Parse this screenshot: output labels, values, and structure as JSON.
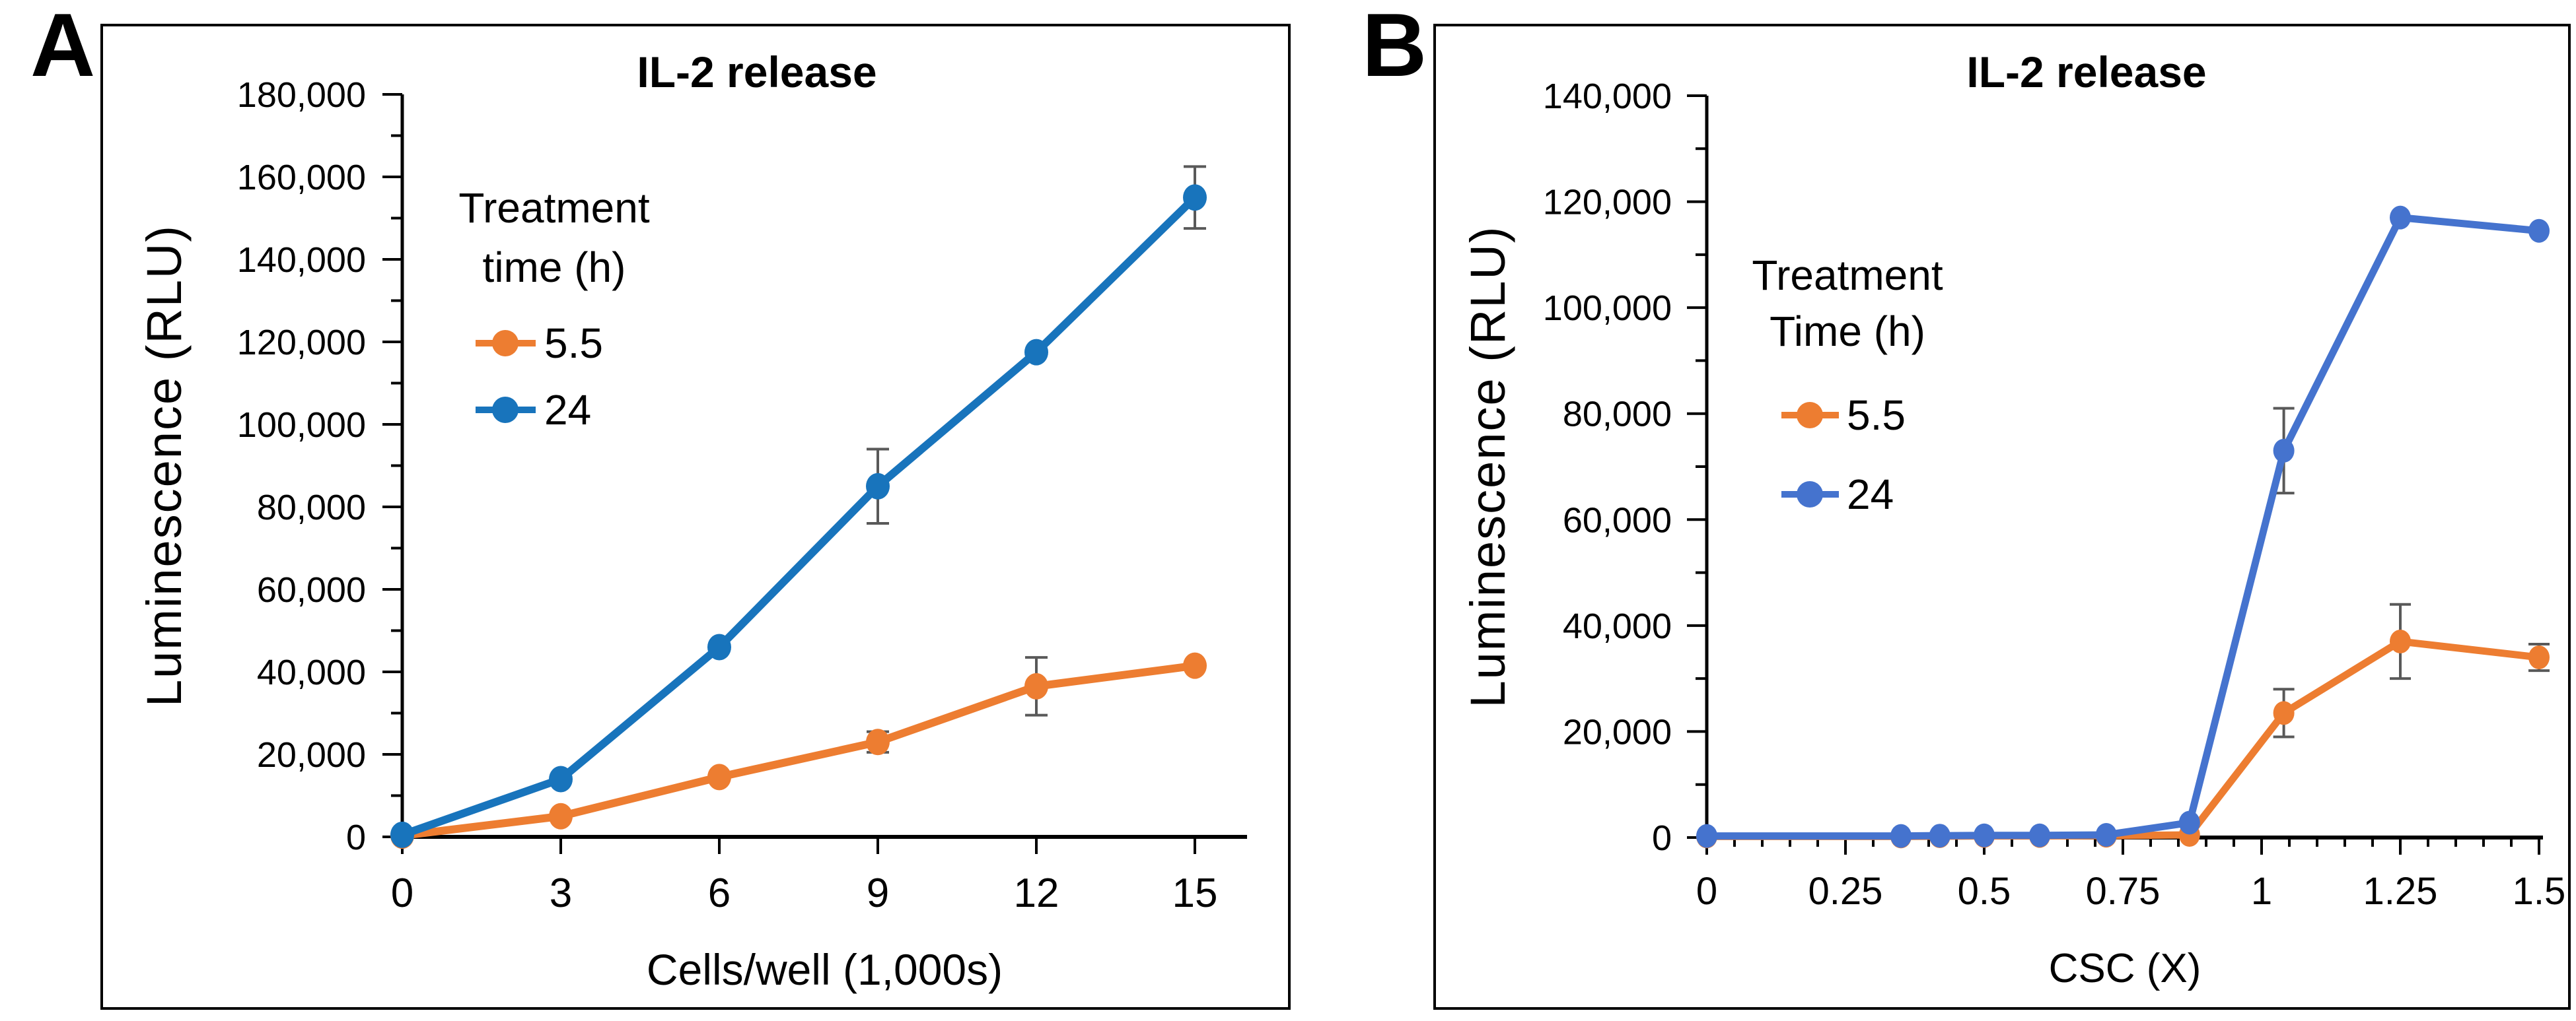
{
  "figure": {
    "background_color": "#ffffff",
    "text_color": "#000000",
    "error_bar_color": "#595959"
  },
  "panels": [
    {
      "letter": "A"
    },
    {
      "letter": "B"
    }
  ],
  "chart_data": [
    {
      "type": "line",
      "panel": "A",
      "title": "IL-2 release",
      "xlabel": "Cells/well (1,000s)",
      "ylabel": "Luminescence (RLU)",
      "xlim": [
        0,
        16
      ],
      "ylim": [
        0,
        180000
      ],
      "y_major_step": 20000,
      "y_minor_step": 10000,
      "x_ticks": [
        0,
        3,
        6,
        9,
        12,
        15
      ],
      "x_tick_labels": [
        "0",
        "3",
        "6",
        "9",
        "12",
        "15"
      ],
      "x_minor_step": null,
      "grid": false,
      "legend_position": "upper-left-inside",
      "legend_title_lines": [
        "Treatment",
        "time (h)"
      ],
      "series": [
        {
          "name": "5.5",
          "color": "#ED7D31",
          "x": [
            0,
            3,
            6,
            9,
            12,
            15
          ],
          "y": [
            300,
            5000,
            14500,
            23000,
            36500,
            41500
          ],
          "yerr": [
            0,
            0,
            0,
            2500,
            7000,
            0
          ]
        },
        {
          "name": "24",
          "color": "#1874BC",
          "x": [
            0,
            3,
            6,
            9,
            12,
            15
          ],
          "y": [
            500,
            14000,
            46000,
            85000,
            117500,
            155000
          ],
          "yerr": [
            0,
            0,
            0,
            9000,
            0,
            7500
          ]
        }
      ]
    },
    {
      "type": "line",
      "panel": "B",
      "title": "IL-2 release",
      "xlabel": "CSC (X)",
      "ylabel": "Luminescence (RLU)",
      "xlim": [
        0,
        1.51
      ],
      "ylim": [
        0,
        140000
      ],
      "y_major_step": 20000,
      "y_minor_step": 10000,
      "x_ticks": [
        0,
        0.25,
        0.5,
        0.75,
        1,
        1.25,
        1.5
      ],
      "x_tick_labels": [
        "0",
        "0.25",
        "0.5",
        "0.75",
        "1",
        "1.25",
        "1.5"
      ],
      "x_minor_step": 0.05,
      "grid": false,
      "legend_position": "upper-left-inside",
      "legend_title_lines": [
        "Treatment",
        "Time (h)"
      ],
      "series": [
        {
          "name": "5.5",
          "color": "#ED7D31",
          "x": [
            0,
            0.35,
            0.42,
            0.5,
            0.6,
            0.72,
            0.87,
            1.04,
            1.25,
            1.5
          ],
          "y": [
            200,
            200,
            250,
            300,
            300,
            350,
            500,
            23500,
            37000,
            34000
          ],
          "yerr": [
            0,
            0,
            0,
            0,
            0,
            0,
            0,
            4500,
            7000,
            2500
          ]
        },
        {
          "name": "24",
          "color": "#4573CE",
          "x": [
            0,
            0.35,
            0.42,
            0.5,
            0.6,
            0.72,
            0.87,
            1.04,
            1.25,
            1.5
          ],
          "y": [
            300,
            300,
            350,
            400,
            400,
            500,
            2800,
            73000,
            117000,
            114500
          ],
          "yerr": [
            0,
            0,
            0,
            0,
            0,
            0,
            0,
            8000,
            0,
            0
          ]
        }
      ]
    }
  ]
}
